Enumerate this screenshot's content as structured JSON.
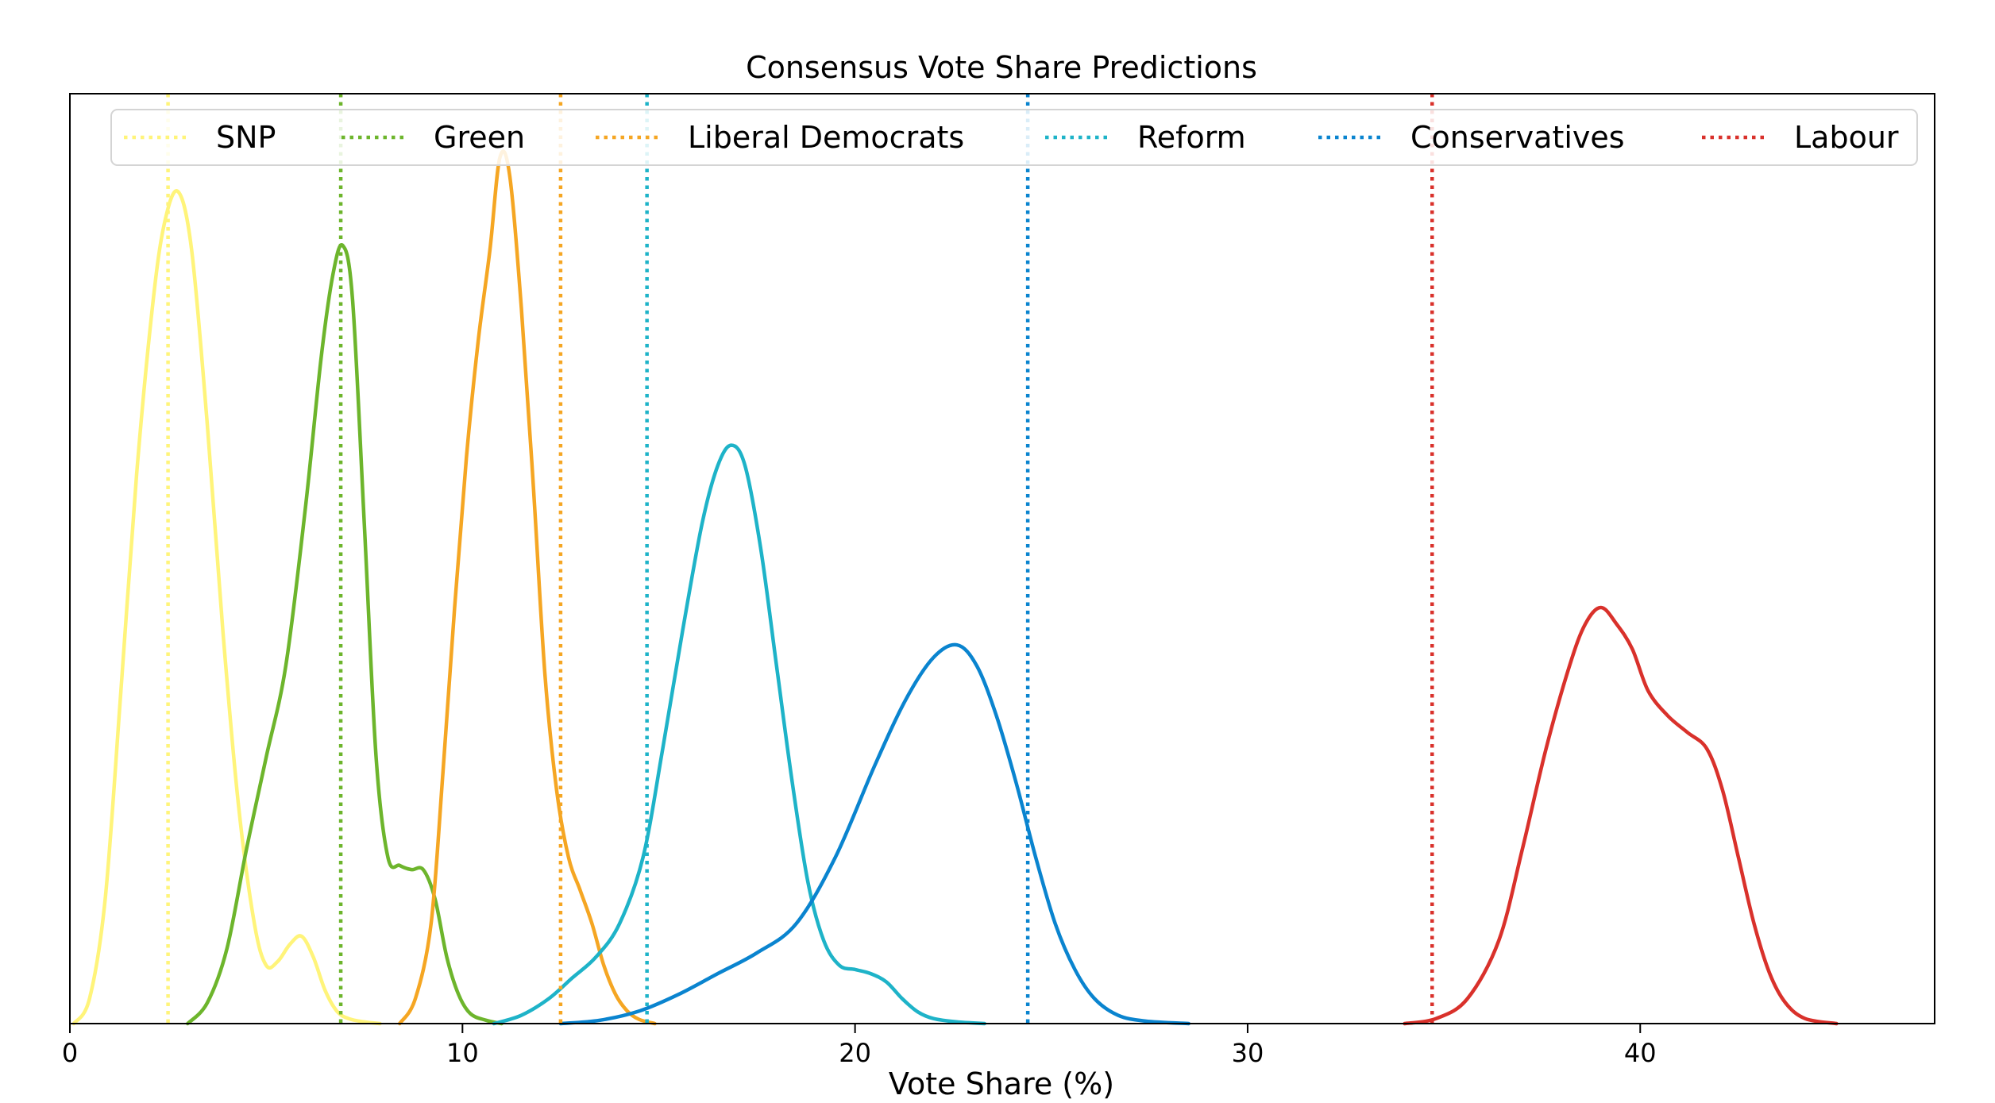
{
  "chart_data": {
    "type": "line",
    "title": "Consensus Vote Share Predictions",
    "xlabel": "Vote Share (%)",
    "ylabel": "",
    "xlim": [
      0,
      47.5
    ],
    "ylim": [
      0,
      1.0
    ],
    "xticks": [
      0,
      10,
      20,
      30,
      40
    ],
    "xtick_labels": [
      "0",
      "10",
      "20",
      "30",
      "40"
    ],
    "yticks_visible": false,
    "grid": false,
    "legend_position": "top, spanning width",
    "legend": [
      "SNP",
      "Green",
      "Liberal Democrats",
      "Reform",
      "Conservatives",
      "Labour"
    ],
    "series": [
      {
        "name": "SNP",
        "color": "#fff47a",
        "consensus": 2.5,
        "x": [
          0.1,
          0.5,
          0.9,
          1.3,
          1.7,
          2.1,
          2.4,
          2.75,
          3.1,
          3.5,
          3.9,
          4.3,
          4.7,
          5.0,
          5.3,
          5.6,
          5.9,
          6.2,
          6.5,
          6.8,
          7.1,
          7.5,
          7.9
        ],
        "y": [
          0.0,
          0.03,
          0.15,
          0.4,
          0.66,
          0.86,
          0.96,
          1.0,
          0.93,
          0.72,
          0.47,
          0.26,
          0.12,
          0.07,
          0.075,
          0.095,
          0.105,
          0.08,
          0.04,
          0.015,
          0.006,
          0.002,
          0.0
        ]
      },
      {
        "name": "Green",
        "color": "#6db52c",
        "consensus": 6.9,
        "x": [
          3.0,
          3.5,
          4.0,
          4.5,
          5.0,
          5.5,
          6.0,
          6.4,
          6.7,
          6.95,
          7.2,
          7.5,
          7.8,
          8.1,
          8.4,
          8.7,
          9.0,
          9.3,
          9.6,
          9.9,
          10.2,
          10.6,
          11.0
        ],
        "y": [
          0.0,
          0.025,
          0.09,
          0.21,
          0.32,
          0.43,
          0.62,
          0.8,
          0.9,
          0.935,
          0.87,
          0.6,
          0.32,
          0.2,
          0.19,
          0.185,
          0.185,
          0.15,
          0.08,
          0.035,
          0.012,
          0.004,
          0.0
        ]
      },
      {
        "name": "Liberal Democrats",
        "color": "#f5a623",
        "consensus": 12.5,
        "x": [
          8.4,
          8.8,
          9.2,
          9.5,
          9.8,
          10.1,
          10.4,
          10.7,
          10.95,
          11.2,
          11.5,
          11.8,
          12.1,
          12.4,
          12.7,
          13.0,
          13.3,
          13.6,
          13.9,
          14.2,
          14.5,
          14.9
        ],
        "y": [
          0.0,
          0.03,
          0.12,
          0.3,
          0.5,
          0.68,
          0.82,
          0.93,
          1.04,
          1.02,
          0.86,
          0.65,
          0.42,
          0.28,
          0.2,
          0.16,
          0.12,
          0.07,
          0.035,
          0.015,
          0.005,
          0.0
        ]
      },
      {
        "name": "Reform",
        "color": "#1eb3c8",
        "consensus": 14.7,
        "x": [
          10.8,
          11.5,
          12.2,
          12.8,
          13.4,
          14.0,
          14.6,
          15.1,
          15.6,
          16.1,
          16.5,
          16.85,
          17.2,
          17.6,
          18.0,
          18.4,
          18.8,
          19.2,
          19.6,
          20.0,
          20.4,
          20.8,
          21.2,
          21.6,
          22.0,
          22.6,
          23.3
        ],
        "y": [
          0.0,
          0.01,
          0.03,
          0.055,
          0.08,
          0.12,
          0.2,
          0.33,
          0.47,
          0.6,
          0.67,
          0.695,
          0.67,
          0.57,
          0.43,
          0.29,
          0.17,
          0.1,
          0.07,
          0.065,
          0.06,
          0.05,
          0.03,
          0.014,
          0.006,
          0.002,
          0.0
        ]
      },
      {
        "name": "Conservatives",
        "color": "#0a84cf",
        "consensus": 24.4,
        "x": [
          12.5,
          13.5,
          14.5,
          15.5,
          16.5,
          17.5,
          18.5,
          19.5,
          20.5,
          21.3,
          22.0,
          22.6,
          23.1,
          23.6,
          24.1,
          24.6,
          25.1,
          25.6,
          26.1,
          26.7,
          27.4,
          28.5
        ],
        "y": [
          0.0,
          0.004,
          0.015,
          0.035,
          0.06,
          0.085,
          0.12,
          0.2,
          0.31,
          0.39,
          0.44,
          0.455,
          0.43,
          0.37,
          0.29,
          0.2,
          0.12,
          0.065,
          0.03,
          0.01,
          0.003,
          0.0
        ]
      },
      {
        "name": "Labour",
        "color": "#d9312b",
        "consensus": 34.7,
        "x": [
          34.0,
          34.8,
          35.6,
          36.4,
          37.0,
          37.6,
          38.2,
          38.6,
          39.0,
          39.4,
          39.8,
          40.2,
          40.7,
          41.2,
          41.7,
          42.1,
          42.5,
          42.9,
          43.3,
          43.7,
          44.2,
          45.0
        ],
        "y": [
          0.0,
          0.006,
          0.03,
          0.1,
          0.21,
          0.33,
          0.43,
          0.48,
          0.5,
          0.48,
          0.45,
          0.4,
          0.37,
          0.35,
          0.33,
          0.28,
          0.2,
          0.12,
          0.06,
          0.025,
          0.006,
          0.0
        ]
      }
    ]
  }
}
